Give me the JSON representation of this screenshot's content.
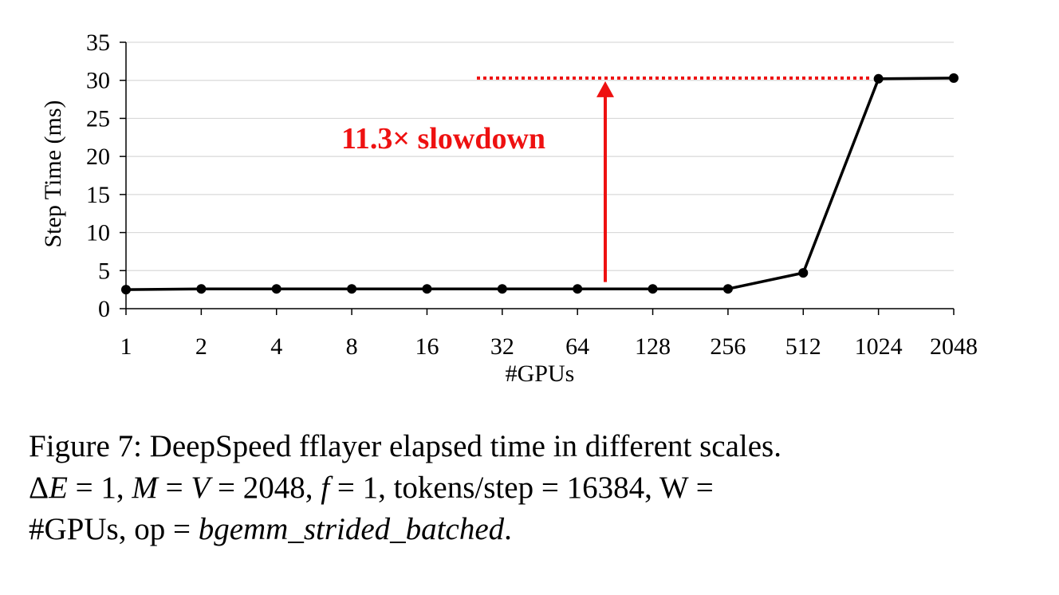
{
  "chart_data": {
    "type": "line",
    "x": [
      "1",
      "2",
      "4",
      "8",
      "16",
      "32",
      "64",
      "128",
      "256",
      "512",
      "1024",
      "2048"
    ],
    "series": [
      {
        "values": [
          2.5,
          2.6,
          2.6,
          2.6,
          2.6,
          2.6,
          2.6,
          2.6,
          2.6,
          4.7,
          30.2,
          30.3
        ]
      }
    ],
    "xlabel": "#GPUs",
    "ylabel": "Step Time (ms)",
    "ylim": [
      0,
      35
    ],
    "yticks": [
      "0",
      "5",
      "10",
      "15",
      "20",
      "25",
      "30",
      "35"
    ],
    "grid": "horizontal",
    "line_color": "#000000",
    "annotation": {
      "text": "11.3× slowdown",
      "color": "#ee1111",
      "baseline_value": 30.3,
      "arrow_from_value": 3.5,
      "arrow_to_value": 30.3
    }
  },
  "caption": {
    "line1": "Figure 7: DeepSpeed fflayer elapsed time in different scales.",
    "line2_a": "Δ",
    "line2_b": "E",
    "line2_c": " = 1, ",
    "line2_d": "M",
    "line2_e": " = ",
    "line2_f": "V",
    "line2_g": " = 2048, ",
    "line2_h": "f",
    "line2_i": " = 1, tokens/step = 16384, W =",
    "line3_a": "#GPUs, op = ",
    "line3_b": "bgemm_strided_batched",
    "line3_c": "."
  }
}
